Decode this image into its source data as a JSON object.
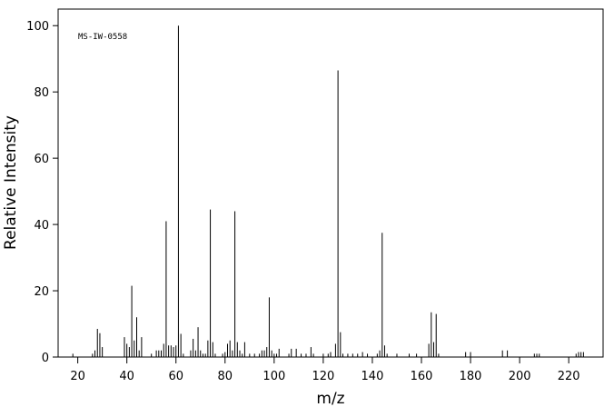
{
  "chart_data": {
    "type": "bar",
    "annotation": "MS-IW-0558",
    "xlabel": "m/z",
    "ylabel": "Relative Intensity",
    "x": [
      18,
      26,
      27,
      28,
      29,
      30,
      39,
      40,
      41,
      42,
      43,
      44,
      45,
      46,
      50,
      52,
      53,
      54,
      55,
      56,
      57,
      58,
      59,
      60,
      61,
      62,
      63,
      66,
      67,
      68,
      69,
      70,
      71,
      72,
      73,
      74,
      75,
      76,
      79,
      80,
      81,
      82,
      83,
      84,
      85,
      86,
      87,
      88,
      90,
      92,
      94,
      95,
      96,
      97,
      98,
      99,
      100,
      101,
      102,
      106,
      107,
      109,
      111,
      113,
      115,
      116,
      120,
      122,
      123,
      125,
      126,
      127,
      128,
      130,
      132,
      134,
      136,
      138,
      142,
      143,
      144,
      145,
      146,
      150,
      155,
      158,
      163,
      164,
      165,
      166,
      167,
      178,
      180,
      193,
      195,
      206,
      207,
      208,
      223,
      224,
      225,
      226
    ],
    "values": [
      1,
      1,
      2,
      8.5,
      7.2,
      3,
      6,
      4,
      3,
      21.5,
      5,
      12,
      2,
      6,
      1,
      2,
      2,
      2,
      4,
      41,
      3.5,
      3.5,
      3,
      3.5,
      100,
      7,
      1,
      2,
      5.5,
      2,
      9,
      2,
      1,
      1,
      5,
      44.5,
      4.5,
      1,
      1,
      1.5,
      4,
      5,
      2,
      44,
      4.5,
      2,
      1,
      4.5,
      1,
      1,
      1,
      2,
      2,
      3,
      18,
      2,
      1,
      1,
      2.5,
      1,
      2.5,
      2.5,
      1,
      1,
      3,
      1,
      1,
      1,
      1.5,
      4,
      86.5,
      7.5,
      1,
      1,
      1,
      1,
      1.5,
      1,
      1,
      2,
      37.5,
      3.5,
      1,
      1,
      1,
      1,
      4,
      13.5,
      4.5,
      13,
      1,
      1.5,
      1.5,
      2,
      2,
      1,
      1,
      1,
      1,
      1.5,
      1.5,
      1.5
    ],
    "color": "#000000",
    "xlim": [
      12,
      234
    ],
    "ylim": [
      0,
      105
    ],
    "xticks": [
      20,
      40,
      60,
      80,
      100,
      120,
      140,
      160,
      180,
      200,
      220
    ],
    "yticks": [
      0,
      20,
      40,
      60,
      80,
      100
    ]
  }
}
